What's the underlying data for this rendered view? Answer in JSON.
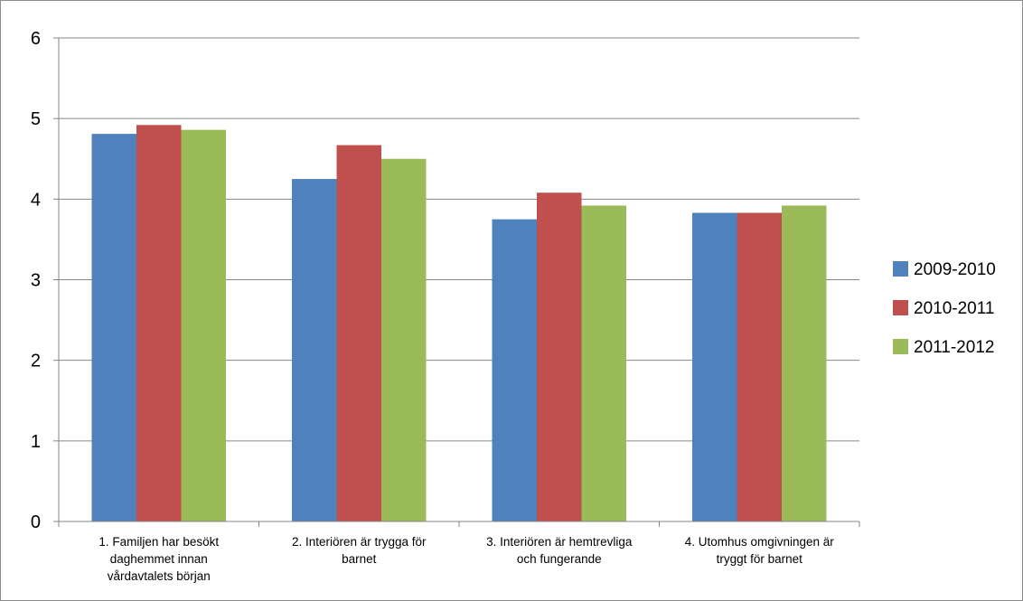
{
  "chart_data": {
    "type": "bar",
    "title": "",
    "xlabel": "",
    "ylabel": "",
    "ylim": [
      0,
      6
    ],
    "yticks": [
      0,
      1,
      2,
      3,
      4,
      5,
      6
    ],
    "grid": "horizontal",
    "legend_position": "right",
    "categories": [
      [
        "1. Familjen har besökt",
        "daghemmet innan",
        "vårdavtalets början"
      ],
      [
        "2. Interiören är trygga för",
        "barnet"
      ],
      [
        "3. Interiören är hemtrevliga",
        "och fungerande"
      ],
      [
        "4. Utomhus omgivningen är",
        "tryggt för barnet"
      ]
    ],
    "series": [
      {
        "name": "2009-2010",
        "color": "#4f81bd",
        "values": [
          4.81,
          4.25,
          3.75,
          3.83
        ]
      },
      {
        "name": "2010-2011",
        "color": "#c0504d",
        "values": [
          4.92,
          4.67,
          4.08,
          3.83
        ]
      },
      {
        "name": "2011-2012",
        "color": "#9bbb59",
        "values": [
          4.86,
          4.5,
          3.92,
          3.92
        ]
      }
    ]
  }
}
